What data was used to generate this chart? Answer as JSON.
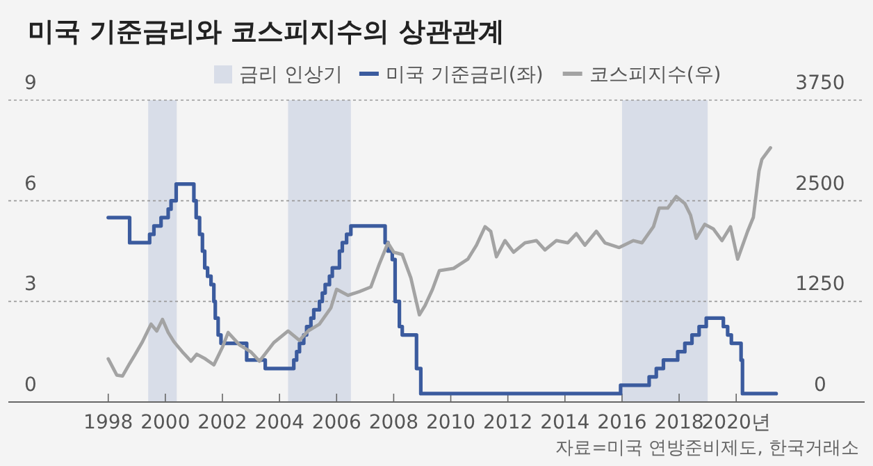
{
  "chart_data": {
    "type": "line",
    "title": "미국 기준금리와 코스피지수의 상관관계",
    "annotations": [
      "자료=미국 연방준비제도, 한국거래소"
    ],
    "xlim": [
      1994.5,
      2024.5
    ],
    "xticks": [
      1998,
      2000,
      2002,
      2004,
      2006,
      2008,
      2010,
      2012,
      2014,
      2016,
      2018,
      {
        "value": 2020,
        "label": "2020년"
      }
    ],
    "ylim": [
      0,
      9
    ],
    "yticks": [
      0,
      3,
      6,
      9
    ],
    "y2lim": [
      0,
      3750
    ],
    "y2ticks": [
      0,
      1250,
      2500,
      3750
    ],
    "grid": "y",
    "legend": "top",
    "bands": [
      {
        "axis": "x",
        "from": 1999.4,
        "to": 2000.4,
        "label": "금리 인상기",
        "color": "#d8dde8"
      },
      {
        "axis": "x",
        "from": 2004.3,
        "to": 2006.5,
        "color": "#d8dde8"
      },
      {
        "axis": "x",
        "from": 2016.0,
        "to": 2019.0,
        "color": "#d8dde8"
      }
    ],
    "series": [
      {
        "name": "미국 기준금리(좌)",
        "type": "step",
        "color": "#3b5b9e",
        "x": [
          1998.0,
          1998.75,
          1999.45,
          1999.6,
          1999.85,
          2000.1,
          2000.2,
          2000.38,
          2001.0,
          2001.08,
          2001.2,
          2001.3,
          2001.38,
          2001.48,
          2001.6,
          2001.7,
          2001.75,
          2001.85,
          2001.95,
          2002.85,
          2003.5,
          2004.5,
          2004.6,
          2004.7,
          2004.85,
          2004.95,
          2005.1,
          2005.2,
          2005.4,
          2005.5,
          2005.6,
          2005.75,
          2005.85,
          2006.1,
          2006.2,
          2006.35,
          2006.5,
          2007.7,
          2007.8,
          2007.95,
          2008.05,
          2008.2,
          2008.3,
          2008.8,
          2008.95,
          2015.95,
          2016.95,
          2017.2,
          2017.45,
          2017.95,
          2018.2,
          2018.45,
          2018.7,
          2018.95,
          2019.55,
          2019.7,
          2019.83,
          2020.17,
          2020.22,
          2021.4
        ],
        "values": [
          5.5,
          4.75,
          5.0,
          5.25,
          5.5,
          5.75,
          6.0,
          6.5,
          6.0,
          5.5,
          5.0,
          4.5,
          4.0,
          3.75,
          3.5,
          3.0,
          2.5,
          2.0,
          1.75,
          1.25,
          1.0,
          1.25,
          1.5,
          1.75,
          2.0,
          2.25,
          2.5,
          2.75,
          3.0,
          3.25,
          3.5,
          3.75,
          4.0,
          4.5,
          4.75,
          5.0,
          5.25,
          4.75,
          4.5,
          4.25,
          3.0,
          2.25,
          2.0,
          1.0,
          0.25,
          0.5,
          0.75,
          1.0,
          1.25,
          1.5,
          1.75,
          2.0,
          2.25,
          2.5,
          2.25,
          2.0,
          1.75,
          1.25,
          0.25,
          0.25
        ]
      },
      {
        "name": "코스피지수(우)",
        "axis": "y2",
        "color": "#a3a3a3",
        "x": [
          1998.0,
          1998.3,
          1998.5,
          1998.75,
          1998.9,
          1999.2,
          1999.5,
          1999.7,
          1999.9,
          2000.1,
          2000.3,
          2000.6,
          2000.9,
          2001.1,
          2001.4,
          2001.7,
          2002.0,
          2002.2,
          2002.6,
          2003.0,
          2003.3,
          2003.8,
          2004.3,
          2004.7,
          2005.0,
          2005.4,
          2005.8,
          2006.0,
          2006.4,
          2006.8,
          2007.2,
          2007.5,
          2007.8,
          2008.0,
          2008.3,
          2008.6,
          2008.9,
          2009.1,
          2009.36,
          2009.6,
          2010.1,
          2010.6,
          2010.9,
          2011.2,
          2011.4,
          2011.6,
          2011.9,
          2012.2,
          2012.6,
          2013.0,
          2013.3,
          2013.7,
          2014.1,
          2014.4,
          2014.7,
          2015.1,
          2015.4,
          2015.9,
          2016.4,
          2016.7,
          2017.1,
          2017.3,
          2017.6,
          2017.9,
          2018.2,
          2018.4,
          2018.6,
          2018.9,
          2019.2,
          2019.5,
          2019.8,
          2020.05,
          2020.4,
          2020.6,
          2020.8,
          2020.9,
          2021.2
        ],
        "values": [
          536,
          334,
          323,
          478,
          565,
          749,
          968,
          882,
          1026,
          864,
          749,
          622,
          507,
          594,
          536,
          461,
          680,
          864,
          709,
          622,
          507,
          738,
          882,
          766,
          882,
          968,
          1170,
          1400,
          1325,
          1372,
          1429,
          1717,
          1977,
          1861,
          1833,
          1544,
          1083,
          1199,
          1400,
          1631,
          1660,
          1775,
          1948,
          2178,
          2121,
          1804,
          2005,
          1861,
          1977,
          2005,
          1890,
          2005,
          1977,
          2092,
          1948,
          2121,
          1977,
          1919,
          2005,
          1977,
          2178,
          2409,
          2409,
          2553,
          2466,
          2322,
          2034,
          2207,
          2150,
          2005,
          2178,
          1775,
          2121,
          2294,
          2870,
          3014,
          3158
        ]
      }
    ]
  }
}
